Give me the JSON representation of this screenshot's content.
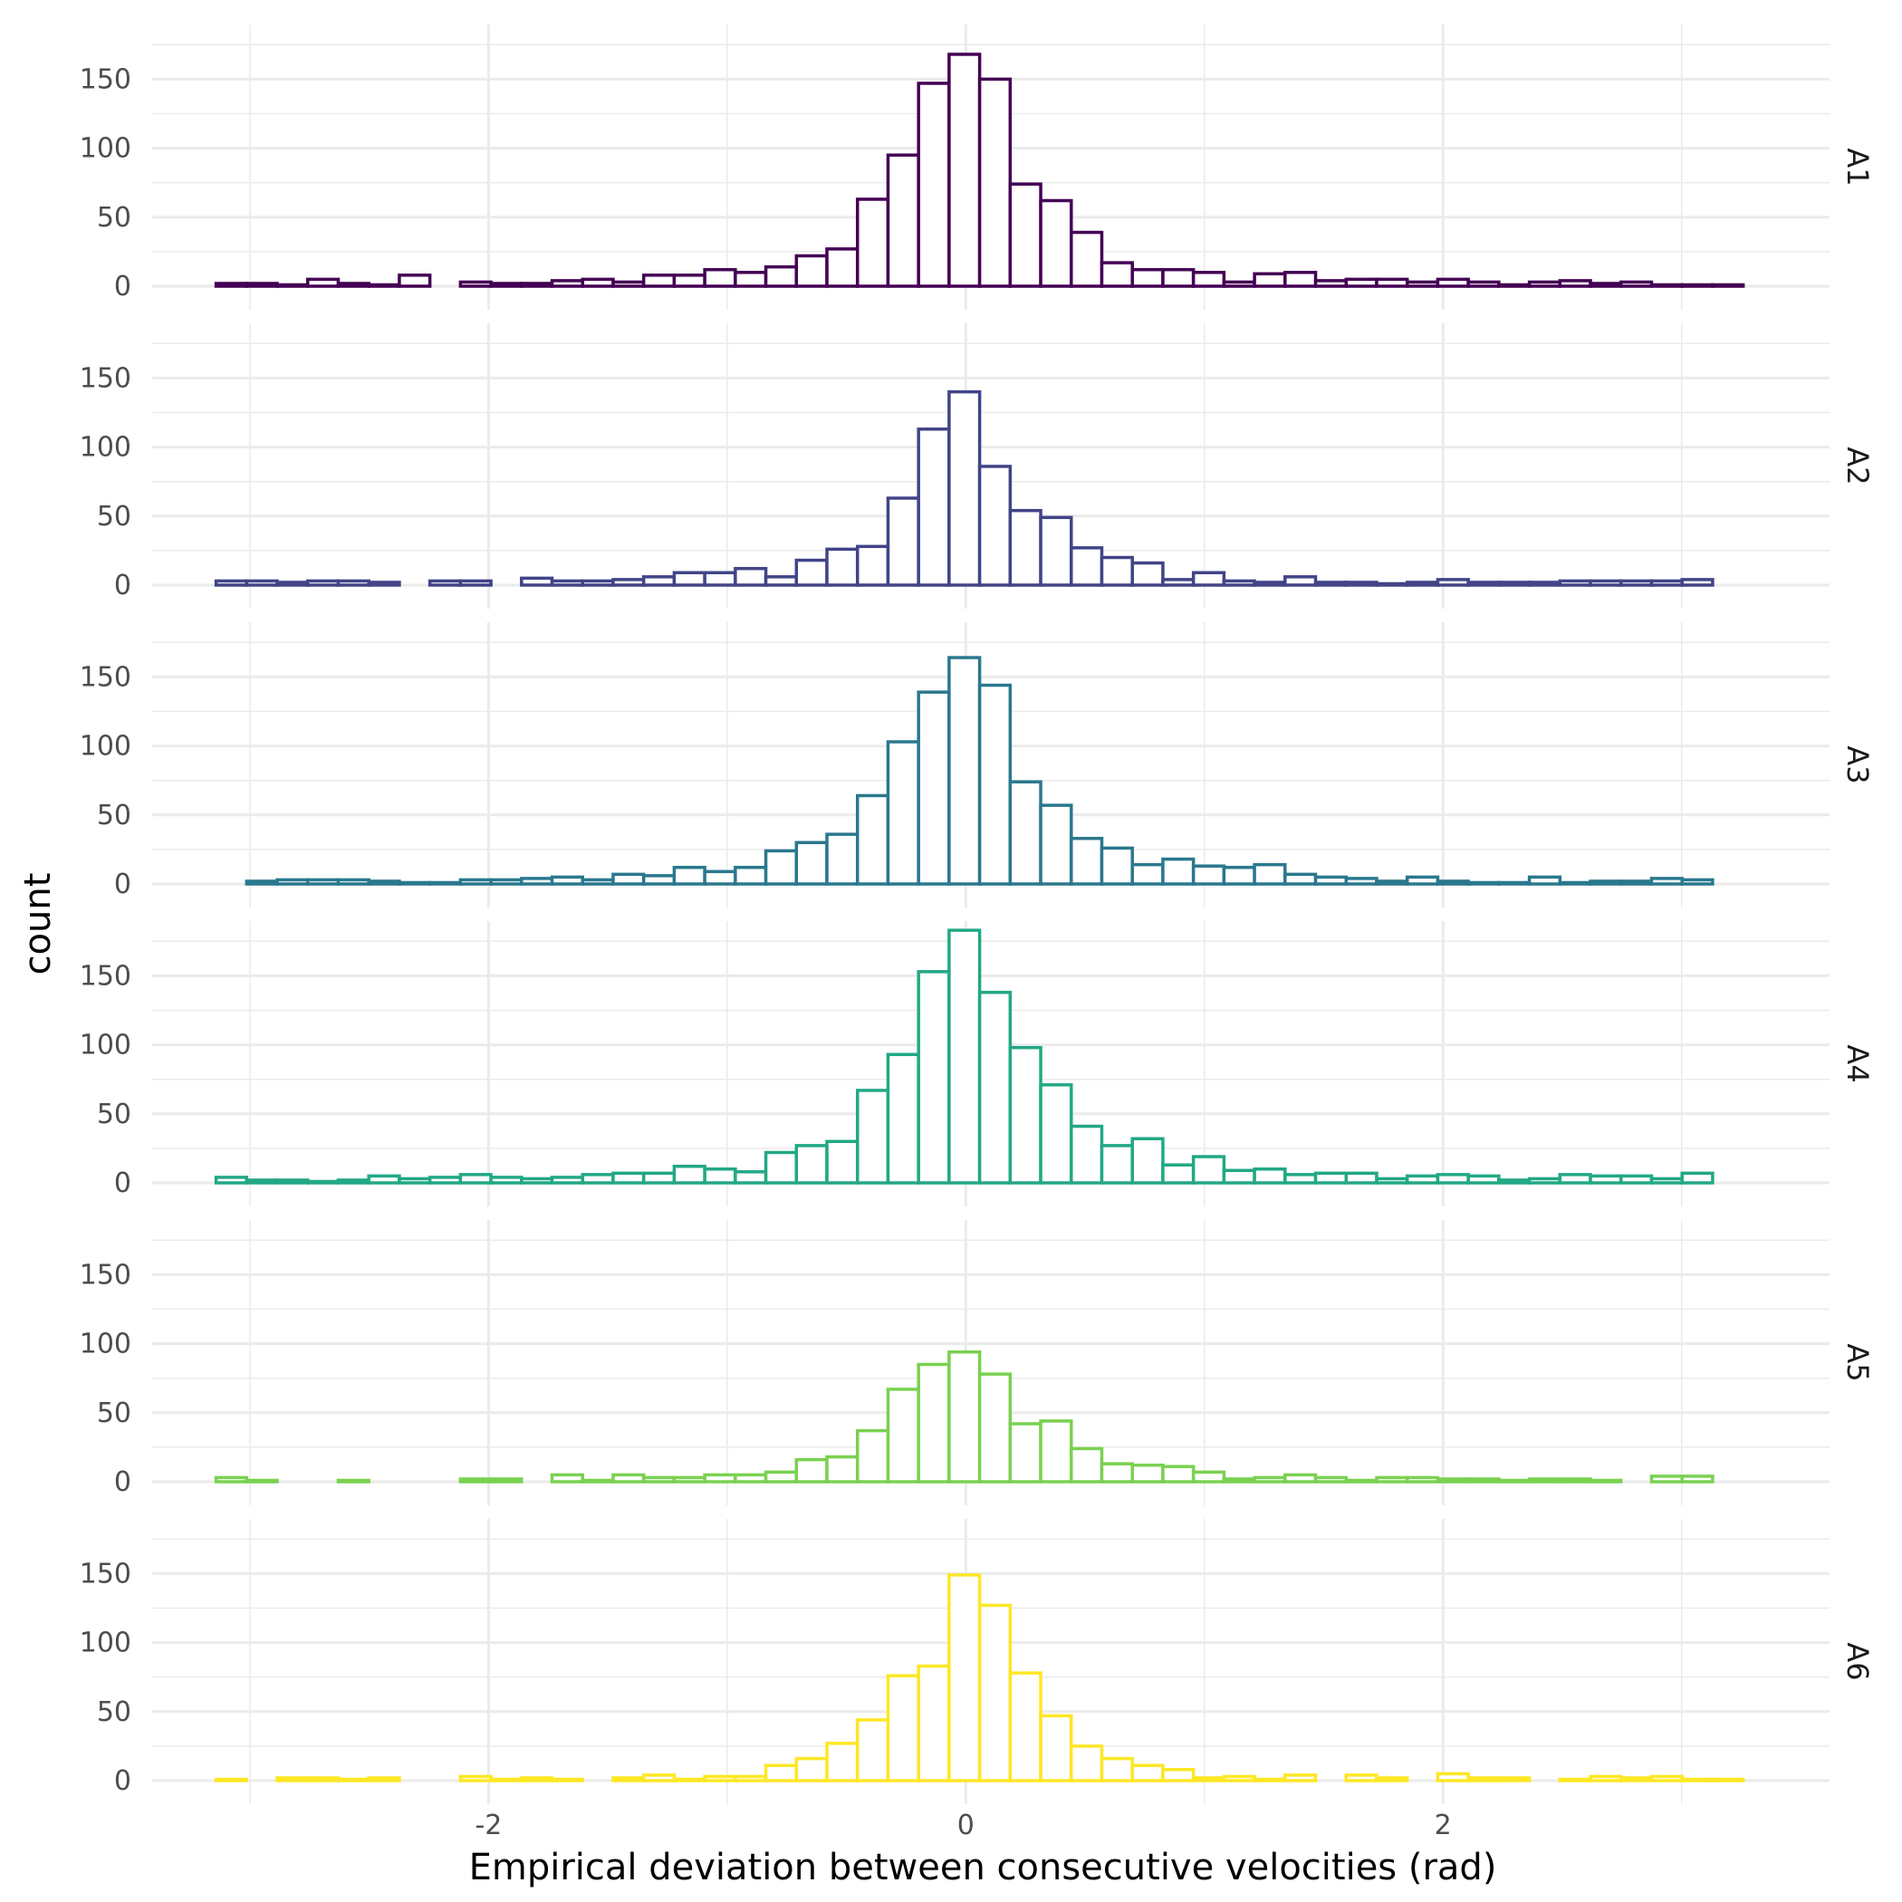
{
  "chart_data": {
    "type": "bar",
    "subtype": "faceted histogram",
    "xlabel": "Empirical deviation between consecutive velocities (rad)",
    "ylabel": "count",
    "xlim": [
      -3.14,
      3.14
    ],
    "ylim": [
      0,
      180
    ],
    "x_ticks": [
      "-2",
      "0",
      "2"
    ],
    "y_ticks": [
      "0",
      "50",
      "100",
      "150"
    ],
    "bin_width": 0.128,
    "bin_start": -3.142,
    "grid": true,
    "legend": "none",
    "facets": [
      {
        "name": "A1",
        "color": "#440154",
        "values": [
          2,
          2,
          1,
          5,
          2,
          1,
          8,
          0,
          3,
          2,
          2,
          4,
          5,
          3,
          8,
          8,
          12,
          10,
          14,
          22,
          27,
          63,
          95,
          147,
          168,
          150,
          74,
          62,
          39,
          17,
          12,
          12,
          10,
          3,
          9,
          10,
          4,
          5,
          5,
          3,
          5,
          3,
          1,
          3,
          4,
          2,
          3,
          1,
          1,
          1
        ]
      },
      {
        "name": "A2",
        "color": "#414487",
        "values": [
          3,
          3,
          2,
          3,
          3,
          2,
          0,
          3,
          3,
          0,
          5,
          3,
          3,
          4,
          6,
          9,
          9,
          12,
          6,
          18,
          26,
          28,
          63,
          113,
          140,
          86,
          54,
          49,
          27,
          20,
          16,
          4,
          9,
          3,
          2,
          6,
          2,
          2,
          1,
          2,
          4,
          2,
          2,
          2,
          3,
          3,
          3,
          3,
          4,
          0
        ]
      },
      {
        "name": "A3",
        "color": "#2A788E",
        "values": [
          0,
          2,
          3,
          3,
          3,
          2,
          1,
          1,
          3,
          3,
          4,
          5,
          3,
          7,
          6,
          12,
          9,
          12,
          24,
          30,
          36,
          64,
          103,
          139,
          164,
          144,
          74,
          57,
          33,
          26,
          14,
          18,
          13,
          12,
          14,
          7,
          5,
          4,
          2,
          5,
          2,
          1,
          1,
          5,
          1,
          2,
          2,
          4,
          3,
          0
        ]
      },
      {
        "name": "A4",
        "color": "#22A884",
        "values": [
          4,
          2,
          2,
          1,
          2,
          5,
          3,
          4,
          6,
          4,
          3,
          4,
          6,
          7,
          7,
          12,
          10,
          8,
          22,
          27,
          30,
          67,
          93,
          153,
          183,
          138,
          98,
          71,
          41,
          27,
          32,
          13,
          19,
          9,
          10,
          6,
          7,
          7,
          3,
          5,
          6,
          5,
          2,
          3,
          6,
          5,
          5,
          3,
          7,
          0
        ]
      },
      {
        "name": "A5",
        "color": "#7AD151",
        "values": [
          3,
          1,
          0,
          0,
          1,
          0,
          0,
          0,
          2,
          2,
          0,
          5,
          1,
          5,
          3,
          3,
          5,
          5,
          7,
          16,
          18,
          37,
          67,
          85,
          94,
          78,
          42,
          44,
          24,
          13,
          12,
          11,
          7,
          2,
          3,
          5,
          3,
          1,
          3,
          3,
          2,
          2,
          1,
          2,
          2,
          1,
          0,
          4,
          4,
          0
        ]
      },
      {
        "name": "A6",
        "color": "#FDE725",
        "values": [
          1,
          0,
          2,
          2,
          1,
          2,
          0,
          0,
          3,
          1,
          2,
          1,
          0,
          2,
          4,
          1,
          3,
          3,
          11,
          16,
          27,
          44,
          76,
          83,
          149,
          127,
          78,
          47,
          25,
          16,
          11,
          8,
          2,
          3,
          1,
          4,
          0,
          4,
          2,
          0,
          5,
          2,
          2,
          0,
          1,
          3,
          2,
          3,
          1,
          1
        ]
      }
    ]
  }
}
